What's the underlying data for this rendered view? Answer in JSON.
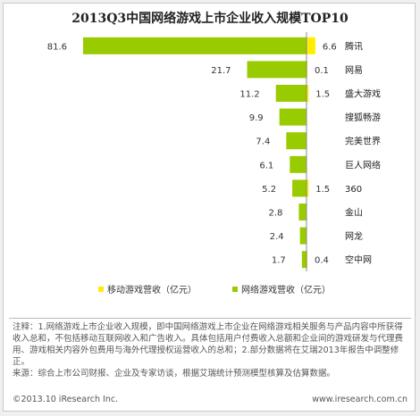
{
  "title": "2013Q3中国网络游戏上市企业收入规模TOP10",
  "chart_data": {
    "type": "bar",
    "title": "2013Q3中国网络游戏上市企业收入规模TOP10",
    "unit": "亿元",
    "categories": [
      "腾讯",
      "网易",
      "盛大游戏",
      "搜狐畅游",
      "完美世界",
      "巨人网络",
      "360",
      "金山",
      "网龙",
      "空中网"
    ],
    "series": [
      {
        "name": "网络游戏营收（亿元）",
        "color": "#99cc00",
        "values": [
          81.6,
          21.7,
          11.2,
          9.9,
          7.4,
          6.1,
          5.2,
          2.8,
          2.4,
          1.7
        ]
      },
      {
        "name": "移动游戏营收（亿元）",
        "color": "#ffee00",
        "values": [
          6.6,
          0.1,
          1.5,
          null,
          null,
          null,
          1.5,
          null,
          null,
          0.4
        ]
      }
    ],
    "legend": "bottom"
  },
  "legend": {
    "mobile_label": "移动游戏营收（亿元）",
    "online_label": "网络游戏营收（亿元）"
  },
  "notes": {
    "line1": "注释：1.网络游戏上市企业收入规模，即中国网络游戏上市企业在网络游戏相关服务与产品内容中所获得收入总和，不包括移动互联网收入和广告收入。具体包括用户付费收入总额和企业间的游戏研发与代理费用、游戏相关内容外包费用与海外代理授权运营收入的总和；2.部分数据将在艾瑞2013年报告中调整修正。",
    "line2": "来源：综合上市公司财报、企业及专家访谈，根据艾瑞统计预测模型核算及估算数据。"
  },
  "footer": {
    "copyright": "©2013.10 iResearch Inc.",
    "site": "www.iresearch.com.cn"
  }
}
